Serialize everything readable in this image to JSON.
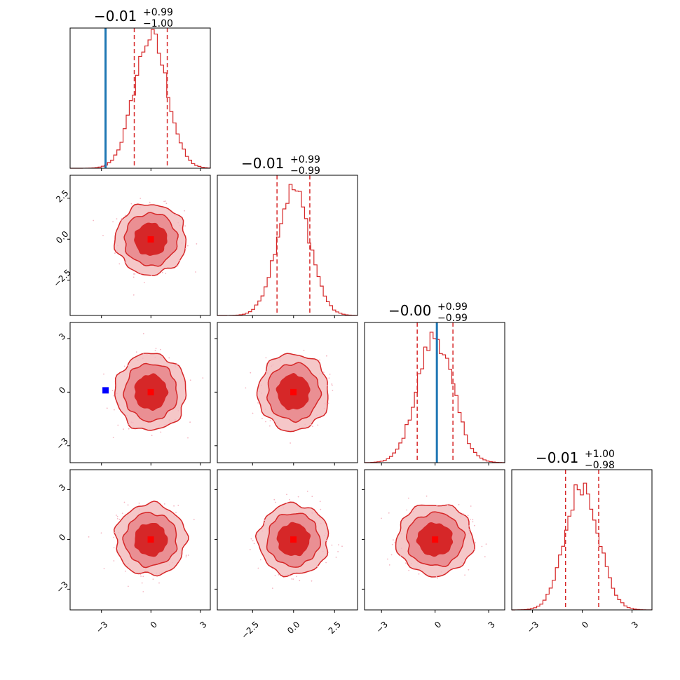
{
  "chart_data": {
    "type": "corner",
    "parameters": 4,
    "colors": {
      "hist": "#d62728",
      "contour_line": "#d62728",
      "contour_fill_1": "#f5c7c8",
      "contour_fill_2": "#ea8f93",
      "contour_fill_3": "#d62728",
      "truth_line": "#1f77b4",
      "truth_marker": "#0000ff",
      "median_marker": "#ff0000",
      "scatter": "#f4b6c2"
    },
    "diagonal": [
      {
        "median": -0.01,
        "plus": "+0.99",
        "minus": "−1.00",
        "median_label": "−0.01",
        "sigma": 1.0,
        "truth": -2.75,
        "peak": 0.94
      },
      {
        "median": -0.01,
        "plus": "+0.99",
        "minus": "−0.99",
        "median_label": "−0.01",
        "sigma": 1.0,
        "truth": null,
        "peak": 0.9
      },
      {
        "median": 0.0,
        "plus": "+0.99",
        "minus": "−0.99",
        "median_label": "−0.00",
        "sigma": 1.0,
        "truth": 0.1,
        "peak": 0.9
      },
      {
        "median": -0.01,
        "plus": "+1.00",
        "minus": "−0.98",
        "median_label": "−0.01",
        "sigma": 1.0,
        "truth": null,
        "peak": 0.9
      }
    ],
    "axes": [
      {
        "range": [
          -4.9,
          3.6
        ],
        "ticks": [
          -3,
          0,
          3
        ],
        "tick_labels": [
          "−3",
          "0",
          "3"
        ]
      },
      {
        "range": [
          -4.65,
          3.9
        ],
        "ticks": [
          -2.5,
          0,
          2.5
        ],
        "tick_labels": [
          "−2.5",
          "0.0",
          "2.5"
        ]
      },
      {
        "range": [
          -3.95,
          3.9
        ],
        "ticks": [
          -3,
          0,
          3
        ],
        "tick_labels": [
          "−3",
          "0",
          "3"
        ]
      },
      {
        "range": [
          -4.25,
          4.2
        ],
        "ticks": [
          -3,
          0,
          3
        ],
        "tick_labels": [
          "−3",
          "0",
          "3"
        ]
      }
    ],
    "contour_radii_sigma": [
      2.15,
      1.6,
      1.0
    ],
    "truth_point_panel_2_0": {
      "x": -2.75,
      "y": 0.1
    }
  }
}
